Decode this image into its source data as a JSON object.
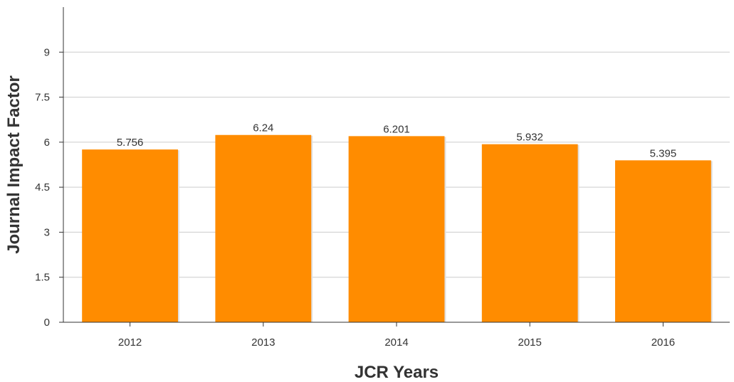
{
  "chart_data": {
    "type": "bar",
    "categories": [
      "2012",
      "2013",
      "2014",
      "2015",
      "2016"
    ],
    "values": [
      5.756,
      6.24,
      6.201,
      5.932,
      5.395
    ],
    "value_labels": [
      "5.756",
      "6.24",
      "6.201",
      "5.932",
      "5.395"
    ],
    "xlabel": "JCR Years",
    "ylabel": "Journal Impact Factor",
    "ylim": [
      0,
      10.5
    ],
    "yticks": [
      0,
      1.5,
      3,
      4.5,
      6,
      7.5,
      9
    ],
    "ytick_labels": [
      "0",
      "1.5",
      "3",
      "4.5",
      "6",
      "7.5",
      "9"
    ],
    "grid": true,
    "bar_color": "#ff8c00",
    "bar_shadow_color": "#e0e0e0",
    "grid_color": "#cccccc",
    "axis_color": "#333333"
  }
}
